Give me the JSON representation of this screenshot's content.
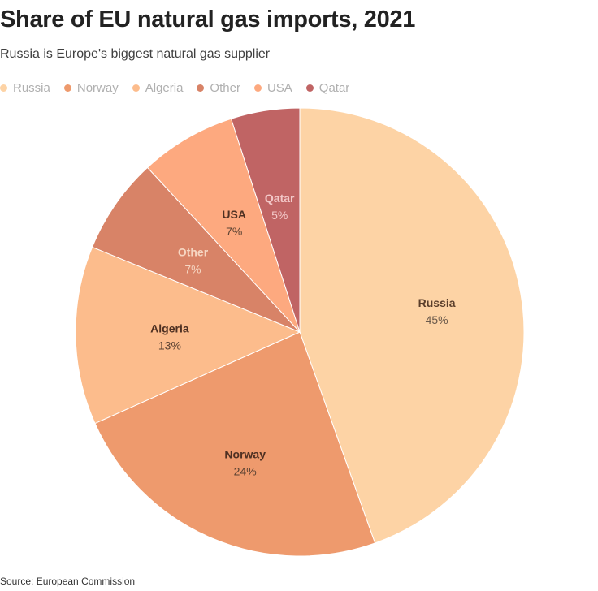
{
  "title": "Share of EU natural gas imports, 2021",
  "subtitle": "Russia is Europe's biggest natural gas supplier",
  "source": "Source: European Commission",
  "chart_data": {
    "type": "pie",
    "title": "Share of EU natural gas imports, 2021",
    "subtitle": "Russia is Europe's biggest natural gas supplier",
    "legend_position": "top-left",
    "slices": [
      {
        "label": "Russia",
        "value": 45,
        "value_label": "45%",
        "color": "#fdd3a5",
        "label_color": "#5a3e2b",
        "value_color": "#6b5a4c"
      },
      {
        "label": "Norway",
        "value": 24,
        "value_label": "24%",
        "color": "#ee9a6d",
        "label_color": "#4e3022",
        "value_color": "#5c4333"
      },
      {
        "label": "Algeria",
        "value": 13,
        "value_label": "13%",
        "color": "#fcbc8c",
        "label_color": "#4e3022",
        "value_color": "#5c4333"
      },
      {
        "label": "Other",
        "value": 7,
        "value_label": "7%",
        "color": "#d88367",
        "label_color": "#f6d6c2",
        "value_color": "#f6d6c2"
      },
      {
        "label": "USA",
        "value": 7,
        "value_label": "7%",
        "color": "#fda97f",
        "label_color": "#4e3022",
        "value_color": "#5c4333"
      },
      {
        "label": "Qatar",
        "value": 5,
        "value_label": "5%",
        "color": "#c06464",
        "label_color": "#f3c9c9",
        "value_color": "#f3c9c9"
      }
    ]
  }
}
